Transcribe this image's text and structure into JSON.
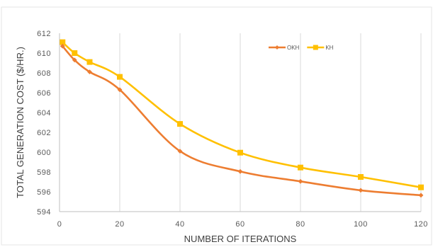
{
  "chart_data": {
    "type": "line",
    "title": "",
    "xlabel": "NUMBER OF ITERATIONS",
    "ylabel": "TOTAL GENERATION COST ($/HR.)",
    "xlim": [
      0,
      120
    ],
    "ylim": [
      594,
      612
    ],
    "xticks": [
      0,
      20,
      40,
      60,
      80,
      100,
      120
    ],
    "yticks": [
      594,
      596,
      598,
      600,
      602,
      604,
      606,
      608,
      610,
      612
    ],
    "grid": {
      "vertical": true,
      "horizontal": false
    },
    "legend_position": "top-right",
    "series": [
      {
        "name": "OKH",
        "color": "#ED7D31",
        "marker": "diamond",
        "x": [
          1,
          5,
          10,
          20,
          40,
          60,
          80,
          100,
          120
        ],
        "y": [
          610.7,
          609.3,
          608.1,
          606.3,
          600.1,
          598.05,
          597.05,
          596.15,
          595.65
        ]
      },
      {
        "name": "KH",
        "color": "#FFC000",
        "marker": "square",
        "x": [
          1,
          5,
          10,
          20,
          40,
          60,
          80,
          100,
          120
        ],
        "y": [
          611.1,
          610.0,
          609.1,
          607.6,
          602.85,
          599.95,
          598.45,
          597.5,
          596.45
        ]
      }
    ]
  }
}
